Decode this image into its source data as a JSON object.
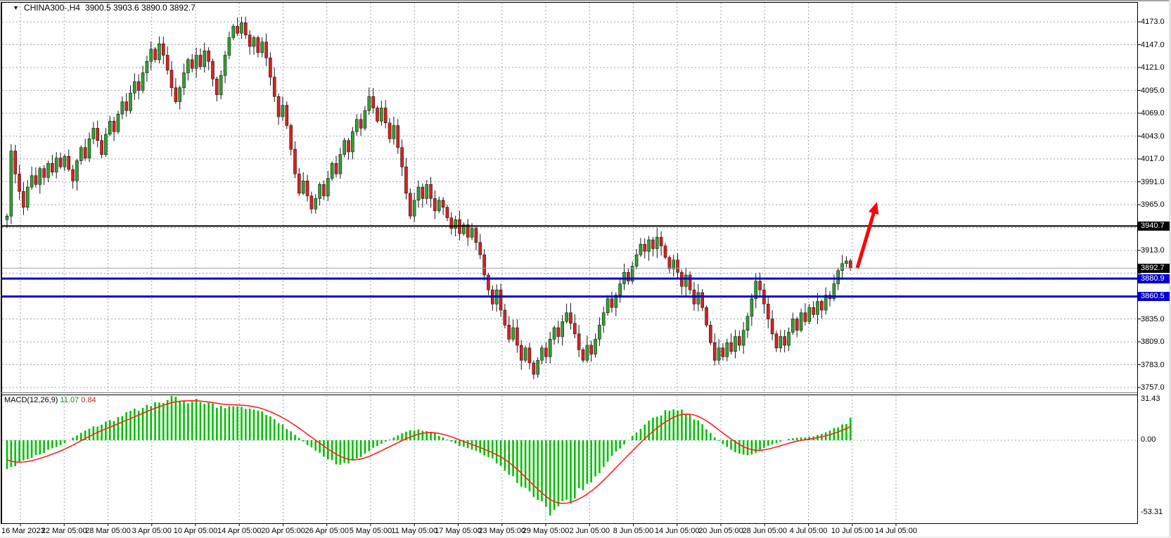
{
  "window": {
    "symbol_title": "CHINA300-,H4",
    "ohlc_line": "3900.5 3903.6 3890.0 3892.7",
    "dropdown_icon": "triangle-down-icon",
    "dropdown_glyph": "▼"
  },
  "chart_data": {
    "type": "candlestick",
    "symbol": "CHINA300",
    "timeframe": "H4",
    "ohlc_display": {
      "open": 3900.5,
      "high": 3903.6,
      "low": 3890.0,
      "close": 3892.7
    },
    "price_axis_ticks": [
      "4173.0",
      "4147.0",
      "4121.0",
      "4095.0",
      "4069.0",
      "4043.0",
      "4017.0",
      "3991.0",
      "3965.0",
      "3913.0",
      "3835.0",
      "3809.0",
      "3783.0",
      "3757.0"
    ],
    "price_axis_top": 4173.0,
    "price_axis_bottom": 3757.0,
    "grid_step": 26,
    "price_tags": [
      {
        "label": "3940.7",
        "price": 3940.7,
        "bg": "#000000"
      },
      {
        "label": "3892.7",
        "price": 3892.7,
        "bg": "#000000"
      },
      {
        "label": "3880.9",
        "price": 3880.9,
        "bg": "#0000cd"
      },
      {
        "label": "3860.5",
        "price": 3860.5,
        "bg": "#0000cd"
      }
    ],
    "horizontal_lines": [
      {
        "price": 3940.7,
        "color": "#000000",
        "width": 2
      },
      {
        "price": 3880.9,
        "color": "#0000cd",
        "width": 3
      },
      {
        "price": 3860.5,
        "color": "#0000cd",
        "width": 3
      }
    ],
    "current_price_line": {
      "price": 3892.7,
      "color": "#9aa2a9"
    },
    "date_labels": [
      "16 Mar 2023",
      "22 Mar 05:00",
      "28 Mar 05:00",
      "3 Apr 05:00",
      "10 Apr 05:00",
      "14 Apr 05:00",
      "20 Apr 05:00",
      "26 Apr 05:00",
      "5 May 05:00",
      "11 May 05:00",
      "17 May 05:00",
      "23 May 05:00",
      "29 May 05:00",
      "2 Jun 05:00",
      "8 Jun 05:00",
      "14 Jun 05:00",
      "20 Jun 05:00",
      "28 Jun 05:00",
      "4 Jul 05:00",
      "10 Jul 05:00",
      "14 Jul 05:00"
    ],
    "first_open": 3948,
    "closes": [
      3952,
      4026,
      4000,
      3980,
      3962,
      3985,
      3998,
      3988,
      4006,
      3996,
      4012,
      4002,
      4018,
      4008,
      4020,
      4005,
      3992,
      4015,
      4030,
      4018,
      4040,
      4052,
      4038,
      4022,
      4045,
      4060,
      4048,
      4068,
      4082,
      4072,
      4092,
      4105,
      4095,
      4115,
      4128,
      4142,
      4130,
      4148,
      4135,
      4118,
      4098,
      4082,
      4098,
      4115,
      4130,
      4120,
      4135,
      4122,
      4140,
      4128,
      4108,
      4090,
      4112,
      4135,
      4155,
      4168,
      4160,
      4172,
      4158,
      4145,
      4155,
      4138,
      4150,
      4132,
      4110,
      4088,
      4065,
      4078,
      4055,
      4028,
      4000,
      3978,
      3992,
      3975,
      3960,
      3972,
      3988,
      3975,
      3995,
      4012,
      4000,
      4022,
      4038,
      4025,
      4048,
      4062,
      4052,
      4072,
      4088,
      4075,
      4060,
      4075,
      4058,
      4040,
      4055,
      4030,
      4008,
      3978,
      3952,
      3970,
      3985,
      3972,
      3988,
      3972,
      3958,
      3970,
      3962,
      3950,
      3938,
      3948,
      3932,
      3942,
      3928,
      3938,
      3922,
      3908,
      3885,
      3868,
      3852,
      3868,
      3845,
      3828,
      3812,
      3825,
      3805,
      3788,
      3802,
      3785,
      3772,
      3788,
      3802,
      3792,
      3812,
      3825,
      3815,
      3832,
      3842,
      3830,
      3818,
      3800,
      3788,
      3805,
      3795,
      3812,
      3828,
      3842,
      3858,
      3848,
      3862,
      3875,
      3888,
      3878,
      3895,
      3908,
      3920,
      3912,
      3925,
      3915,
      3928,
      3918,
      3905,
      3892,
      3902,
      3888,
      3872,
      3885,
      3868,
      3852,
      3865,
      3848,
      3828,
      3808,
      3788,
      3802,
      3792,
      3808,
      3798,
      3815,
      3805,
      3822,
      3838,
      3858,
      3878,
      3868,
      3852,
      3835,
      3818,
      3802,
      3815,
      3805,
      3820,
      3835,
      3822,
      3842,
      3832,
      3848,
      3840,
      3855,
      3845,
      3862,
      3858,
      3875,
      3890,
      3898,
      3901,
      3892.7
    ],
    "last_candle": {
      "open": 3900.5,
      "high": 3903.6,
      "low": 3890.0,
      "close": 3892.7
    },
    "macd": {
      "label": "MACD(12,26,9)",
      "value": "11.07",
      "signal_value": "0.84",
      "axis": [
        "31.43",
        "0.00",
        "-53.31"
      ],
      "anchors": [
        [
          0,
          -20
        ],
        [
          3,
          -17
        ],
        [
          6,
          -13
        ],
        [
          9,
          -9
        ],
        [
          12,
          -5
        ],
        [
          14,
          -2
        ],
        [
          16,
          2
        ],
        [
          19,
          7
        ],
        [
          22,
          11
        ],
        [
          25,
          14
        ],
        [
          28,
          18
        ],
        [
          31,
          22
        ],
        [
          34,
          26
        ],
        [
          37,
          29
        ],
        [
          40,
          31
        ],
        [
          43,
          30
        ],
        [
          46,
          29
        ],
        [
          49,
          27
        ],
        [
          52,
          25
        ],
        [
          55,
          26
        ],
        [
          58,
          25
        ],
        [
          61,
          22
        ],
        [
          64,
          17
        ],
        [
          67,
          11
        ],
        [
          70,
          4
        ],
        [
          72,
          -1
        ],
        [
          75,
          -8
        ],
        [
          78,
          -14
        ],
        [
          80,
          -17
        ],
        [
          82,
          -18
        ],
        [
          84,
          -16
        ],
        [
          86,
          -12
        ],
        [
          88,
          -8
        ],
        [
          90,
          -4
        ],
        [
          92,
          -1
        ],
        [
          94,
          2
        ],
        [
          96,
          5
        ],
        [
          98,
          7
        ],
        [
          100,
          8
        ],
        [
          102,
          7
        ],
        [
          104,
          5
        ],
        [
          106,
          2
        ],
        [
          108,
          -1
        ],
        [
          110,
          -4
        ],
        [
          112,
          -6
        ],
        [
          114,
          -8
        ],
        [
          116,
          -11
        ],
        [
          118,
          -14
        ],
        [
          120,
          -18
        ],
        [
          122,
          -24
        ],
        [
          124,
          -31
        ],
        [
          126,
          -38
        ],
        [
          128,
          -44
        ],
        [
          130,
          -49
        ],
        [
          132,
          -52
        ],
        [
          134,
          -50
        ],
        [
          136,
          -46
        ],
        [
          138,
          -41
        ],
        [
          140,
          -36
        ],
        [
          142,
          -30
        ],
        [
          144,
          -23
        ],
        [
          146,
          -16
        ],
        [
          148,
          -9
        ],
        [
          150,
          -3
        ],
        [
          152,
          3
        ],
        [
          154,
          9
        ],
        [
          156,
          14
        ],
        [
          158,
          18
        ],
        [
          160,
          21
        ],
        [
          162,
          23
        ],
        [
          164,
          22
        ],
        [
          166,
          19
        ],
        [
          168,
          14
        ],
        [
          170,
          8
        ],
        [
          172,
          2
        ],
        [
          174,
          -3
        ],
        [
          176,
          -7
        ],
        [
          178,
          -10
        ],
        [
          180,
          -11
        ],
        [
          182,
          -9
        ],
        [
          184,
          -6
        ],
        [
          186,
          -3
        ],
        [
          188,
          -1
        ],
        [
          190,
          1
        ],
        [
          192,
          2
        ],
        [
          194,
          2
        ],
        [
          196,
          3
        ],
        [
          198,
          5
        ],
        [
          200,
          7
        ],
        [
          202,
          10
        ],
        [
          204,
          13
        ],
        [
          205,
          16
        ]
      ]
    },
    "annotation_arrow": {
      "type": "trend-arrow-up",
      "color": "#ff0000",
      "tail": [
        1219,
        381
      ],
      "tip": [
        1247,
        287
      ]
    },
    "colors": {
      "candle_up": "#2fa32f",
      "candle_down": "#df1f1f",
      "wick": "#151515",
      "macd_histogram": "#00c000",
      "macd_signal": "#ff2020",
      "grid": "#99a4b2",
      "level_blue": "#0000cd",
      "level_black": "#000000",
      "axis_text": "#000000"
    }
  }
}
